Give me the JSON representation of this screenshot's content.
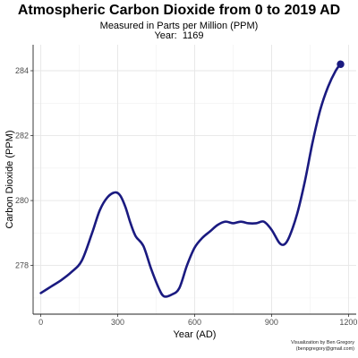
{
  "chart_data": {
    "type": "line",
    "title": "Atmospheric Carbon Dioxide from 0 to 2019 AD",
    "subtitle": "Measured in Parts per Million (PPM)",
    "year_label": "Year:",
    "year_value": "1169",
    "xlabel": "Year (AD)",
    "ylabel": "Carbon Dioxide (PPM)",
    "xlim": [
      -30,
      1230
    ],
    "ylim": [
      276.5,
      284.8
    ],
    "xticks": [
      0,
      300,
      600,
      900,
      1200
    ],
    "yticks": [
      278,
      280,
      282,
      284
    ],
    "grid": true,
    "line_color": "#1a1a80",
    "marker": {
      "x": 1169,
      "y": 284.2
    },
    "credit": [
      "Visualization by Ben Gregory",
      "(benpgregory@gmail.com)"
    ],
    "x": [
      0,
      40,
      80,
      120,
      160,
      200,
      230,
      260,
      290,
      310,
      330,
      350,
      370,
      400,
      430,
      460,
      480,
      510,
      540,
      570,
      600,
      630,
      660,
      690,
      720,
      750,
      780,
      810,
      840,
      870,
      900,
      930,
      950,
      970,
      1000,
      1030,
      1060,
      1090,
      1120,
      1150,
      1169
    ],
    "y": [
      277.15,
      277.35,
      277.55,
      277.8,
      278.15,
      279.0,
      279.7,
      280.1,
      280.25,
      280.15,
      279.8,
      279.3,
      278.9,
      278.6,
      277.9,
      277.3,
      277.05,
      277.1,
      277.3,
      278.0,
      278.55,
      278.85,
      279.05,
      279.25,
      279.35,
      279.3,
      279.35,
      279.3,
      279.3,
      279.35,
      279.1,
      278.7,
      278.65,
      278.9,
      279.6,
      280.6,
      281.8,
      282.8,
      283.5,
      284.0,
      284.2
    ]
  }
}
